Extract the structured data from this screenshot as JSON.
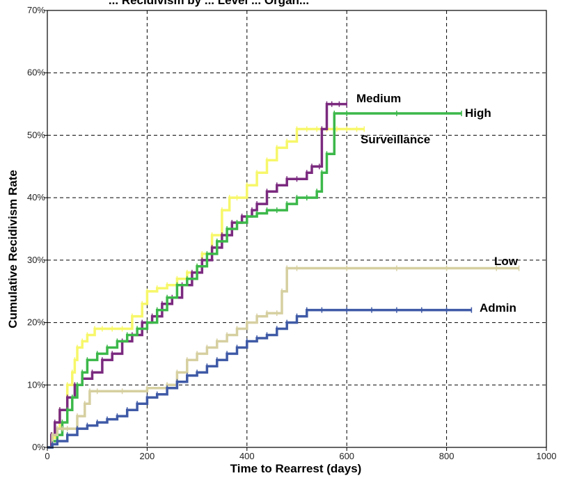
{
  "chart_data": {
    "type": "line",
    "title": "... Recidivism by ... Level ... Organ...",
    "xlabel": "Time to Rearrest (days)",
    "ylabel": "Cumulative Recidivism Rate",
    "xlim": [
      0,
      1000
    ],
    "ylim": [
      0,
      70
    ],
    "x_ticks": [
      "0",
      "200",
      "400",
      "600",
      "800",
      "1000"
    ],
    "y_ticks": [
      "0%",
      "10%",
      "20%",
      "30%",
      "40%",
      "50%",
      "60%",
      "70%"
    ],
    "grid": true,
    "legend": "labels at line ends",
    "series": [
      {
        "name": "Surveillance",
        "color": "#f7f76a",
        "x": [
          0,
          8,
          15,
          25,
          40,
          50,
          55,
          60,
          70,
          80,
          95,
          110,
          130,
          150,
          170,
          190,
          200,
          220,
          240,
          260,
          280,
          300,
          310,
          330,
          350,
          365,
          380,
          400,
          420,
          440,
          460,
          480,
          500,
          520,
          540,
          560,
          580,
          600,
          620,
          635
        ],
        "y": [
          0,
          1.5,
          3,
          6,
          10,
          12,
          14,
          16,
          17,
          18,
          19,
          19,
          19,
          19,
          21,
          23,
          25,
          25.5,
          26,
          27,
          28,
          29,
          31,
          34,
          38,
          40,
          40,
          42,
          44,
          46,
          48,
          49,
          51,
          51,
          51,
          51,
          51,
          51,
          51,
          51
        ]
      },
      {
        "name": "Medium",
        "color": "#7b2a7f",
        "x": [
          0,
          8,
          15,
          25,
          40,
          55,
          70,
          90,
          110,
          130,
          150,
          170,
          190,
          210,
          230,
          250,
          270,
          290,
          310,
          330,
          350,
          370,
          390,
          400,
          410,
          420,
          440,
          460,
          480,
          500,
          520,
          530,
          545,
          550,
          560,
          570,
          585,
          600
        ],
        "y": [
          0,
          2,
          4,
          6,
          8,
          10,
          11,
          12,
          14,
          15,
          17,
          18,
          20,
          21,
          23,
          24,
          26,
          28,
          30,
          32,
          34,
          36,
          37,
          37,
          38,
          39,
          41,
          42,
          43,
          43,
          44,
          45,
          45,
          51,
          55,
          55,
          55,
          55
        ]
      },
      {
        "name": "High",
        "color": "#3cb84a",
        "x": [
          0,
          10,
          20,
          30,
          40,
          50,
          60,
          70,
          80,
          100,
          120,
          140,
          160,
          180,
          200,
          220,
          240,
          260,
          280,
          300,
          320,
          340,
          360,
          380,
          400,
          420,
          440,
          460,
          480,
          500,
          520,
          540,
          550,
          560,
          575,
          600,
          700,
          830
        ],
        "y": [
          0,
          1,
          2,
          4,
          6,
          8,
          10,
          12,
          14,
          15,
          16,
          17,
          18,
          19,
          20,
          22,
          24,
          26,
          27,
          29,
          31,
          33,
          35,
          36,
          37,
          37.5,
          38,
          38,
          39,
          40,
          40,
          41,
          44,
          47,
          53.5,
          53.5,
          53.5,
          53.5
        ]
      },
      {
        "name": "Low",
        "color": "#d6cfa0",
        "x": [
          0,
          10,
          20,
          30,
          40,
          60,
          75,
          85,
          100,
          150,
          200,
          240,
          260,
          280,
          300,
          320,
          340,
          360,
          380,
          400,
          420,
          440,
          460,
          470,
          480,
          500,
          600,
          700,
          800,
          900,
          945
        ],
        "y": [
          0,
          2,
          3,
          3,
          3,
          5,
          7,
          9,
          9,
          9,
          9.5,
          10,
          12,
          14,
          15,
          16,
          17,
          18,
          19,
          20,
          21,
          21.5,
          21.5,
          25,
          28.7,
          28.7,
          28.7,
          28.7,
          28.7,
          28.7,
          28.7
        ]
      },
      {
        "name": "Admin",
        "color": "#3f5aa6",
        "x": [
          0,
          10,
          20,
          40,
          60,
          80,
          100,
          120,
          140,
          160,
          180,
          200,
          220,
          240,
          260,
          280,
          300,
          320,
          340,
          360,
          380,
          400,
          420,
          440,
          460,
          480,
          500,
          520,
          550,
          600,
          650,
          700,
          750,
          800,
          850
        ],
        "y": [
          0,
          0.5,
          1,
          2,
          3,
          3.5,
          4,
          4.5,
          5,
          6,
          7,
          8,
          8.5,
          9.5,
          10.5,
          11.5,
          12,
          13,
          14,
          15,
          16,
          17,
          17.5,
          18,
          19,
          20,
          21,
          22,
          22,
          22,
          22,
          22,
          22,
          22,
          22
        ]
      }
    ],
    "series_labels": [
      "Medium",
      "High",
      "Surveillance",
      "Low",
      "Admin"
    ]
  }
}
